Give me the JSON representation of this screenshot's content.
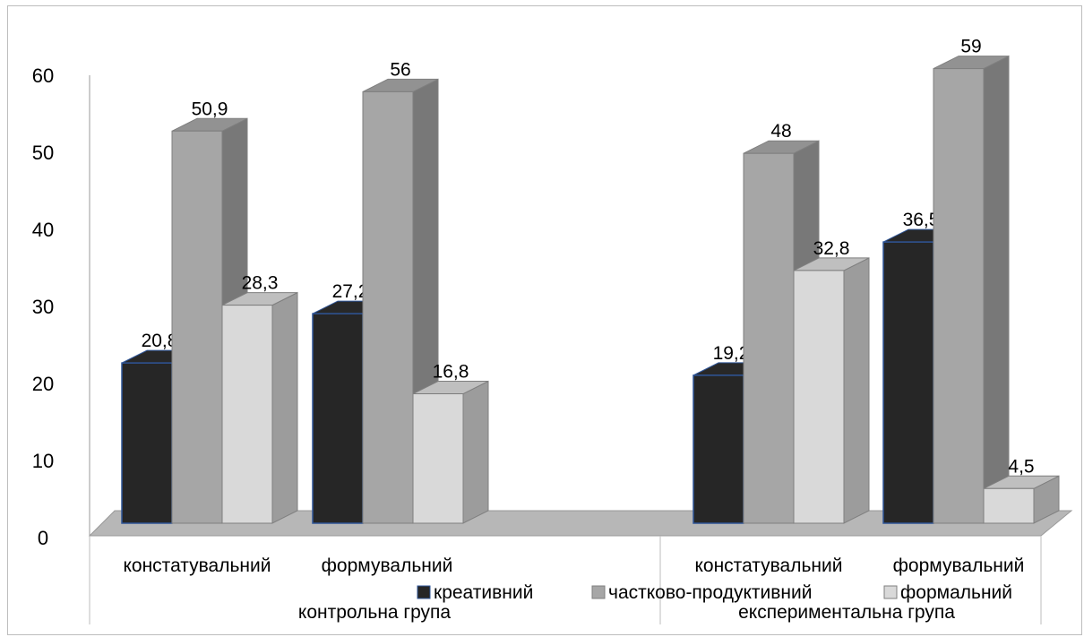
{
  "chart_data": {
    "type": "bar",
    "title": "",
    "xlabel": "",
    "ylabel": "",
    "ylim": [
      0,
      60
    ],
    "yticks": [
      0,
      10,
      20,
      30,
      40,
      50,
      60
    ],
    "grid": false,
    "three_d": true,
    "groups": [
      {
        "label": "контрольна група",
        "categories": [
          "констатувальний",
          "формувальний"
        ]
      },
      {
        "label": "експериментальна група",
        "categories": [
          "констатувальний",
          "формувальний"
        ]
      }
    ],
    "categories": [
      "констатувальний",
      "формувальний",
      "констатувальний",
      "формувальний"
    ],
    "series": [
      {
        "name": "креативний",
        "values": [
          20.8,
          27.2,
          19.2,
          36.5
        ],
        "labels": [
          "20,8",
          "27,2",
          "19,2",
          "36,5"
        ],
        "color": "#262626"
      },
      {
        "name": "частково-продуктивний",
        "values": [
          50.9,
          56,
          48,
          59
        ],
        "labels": [
          "50,9",
          "56",
          "48",
          "59"
        ],
        "color": "#a6a6a6"
      },
      {
        "name": "формальний",
        "values": [
          28.3,
          16.8,
          32.8,
          4.5
        ],
        "labels": [
          "28,3",
          "16,8",
          "32,8",
          "4,5"
        ],
        "color": "#d9d9d9"
      }
    ],
    "legend_position": "bottom"
  }
}
